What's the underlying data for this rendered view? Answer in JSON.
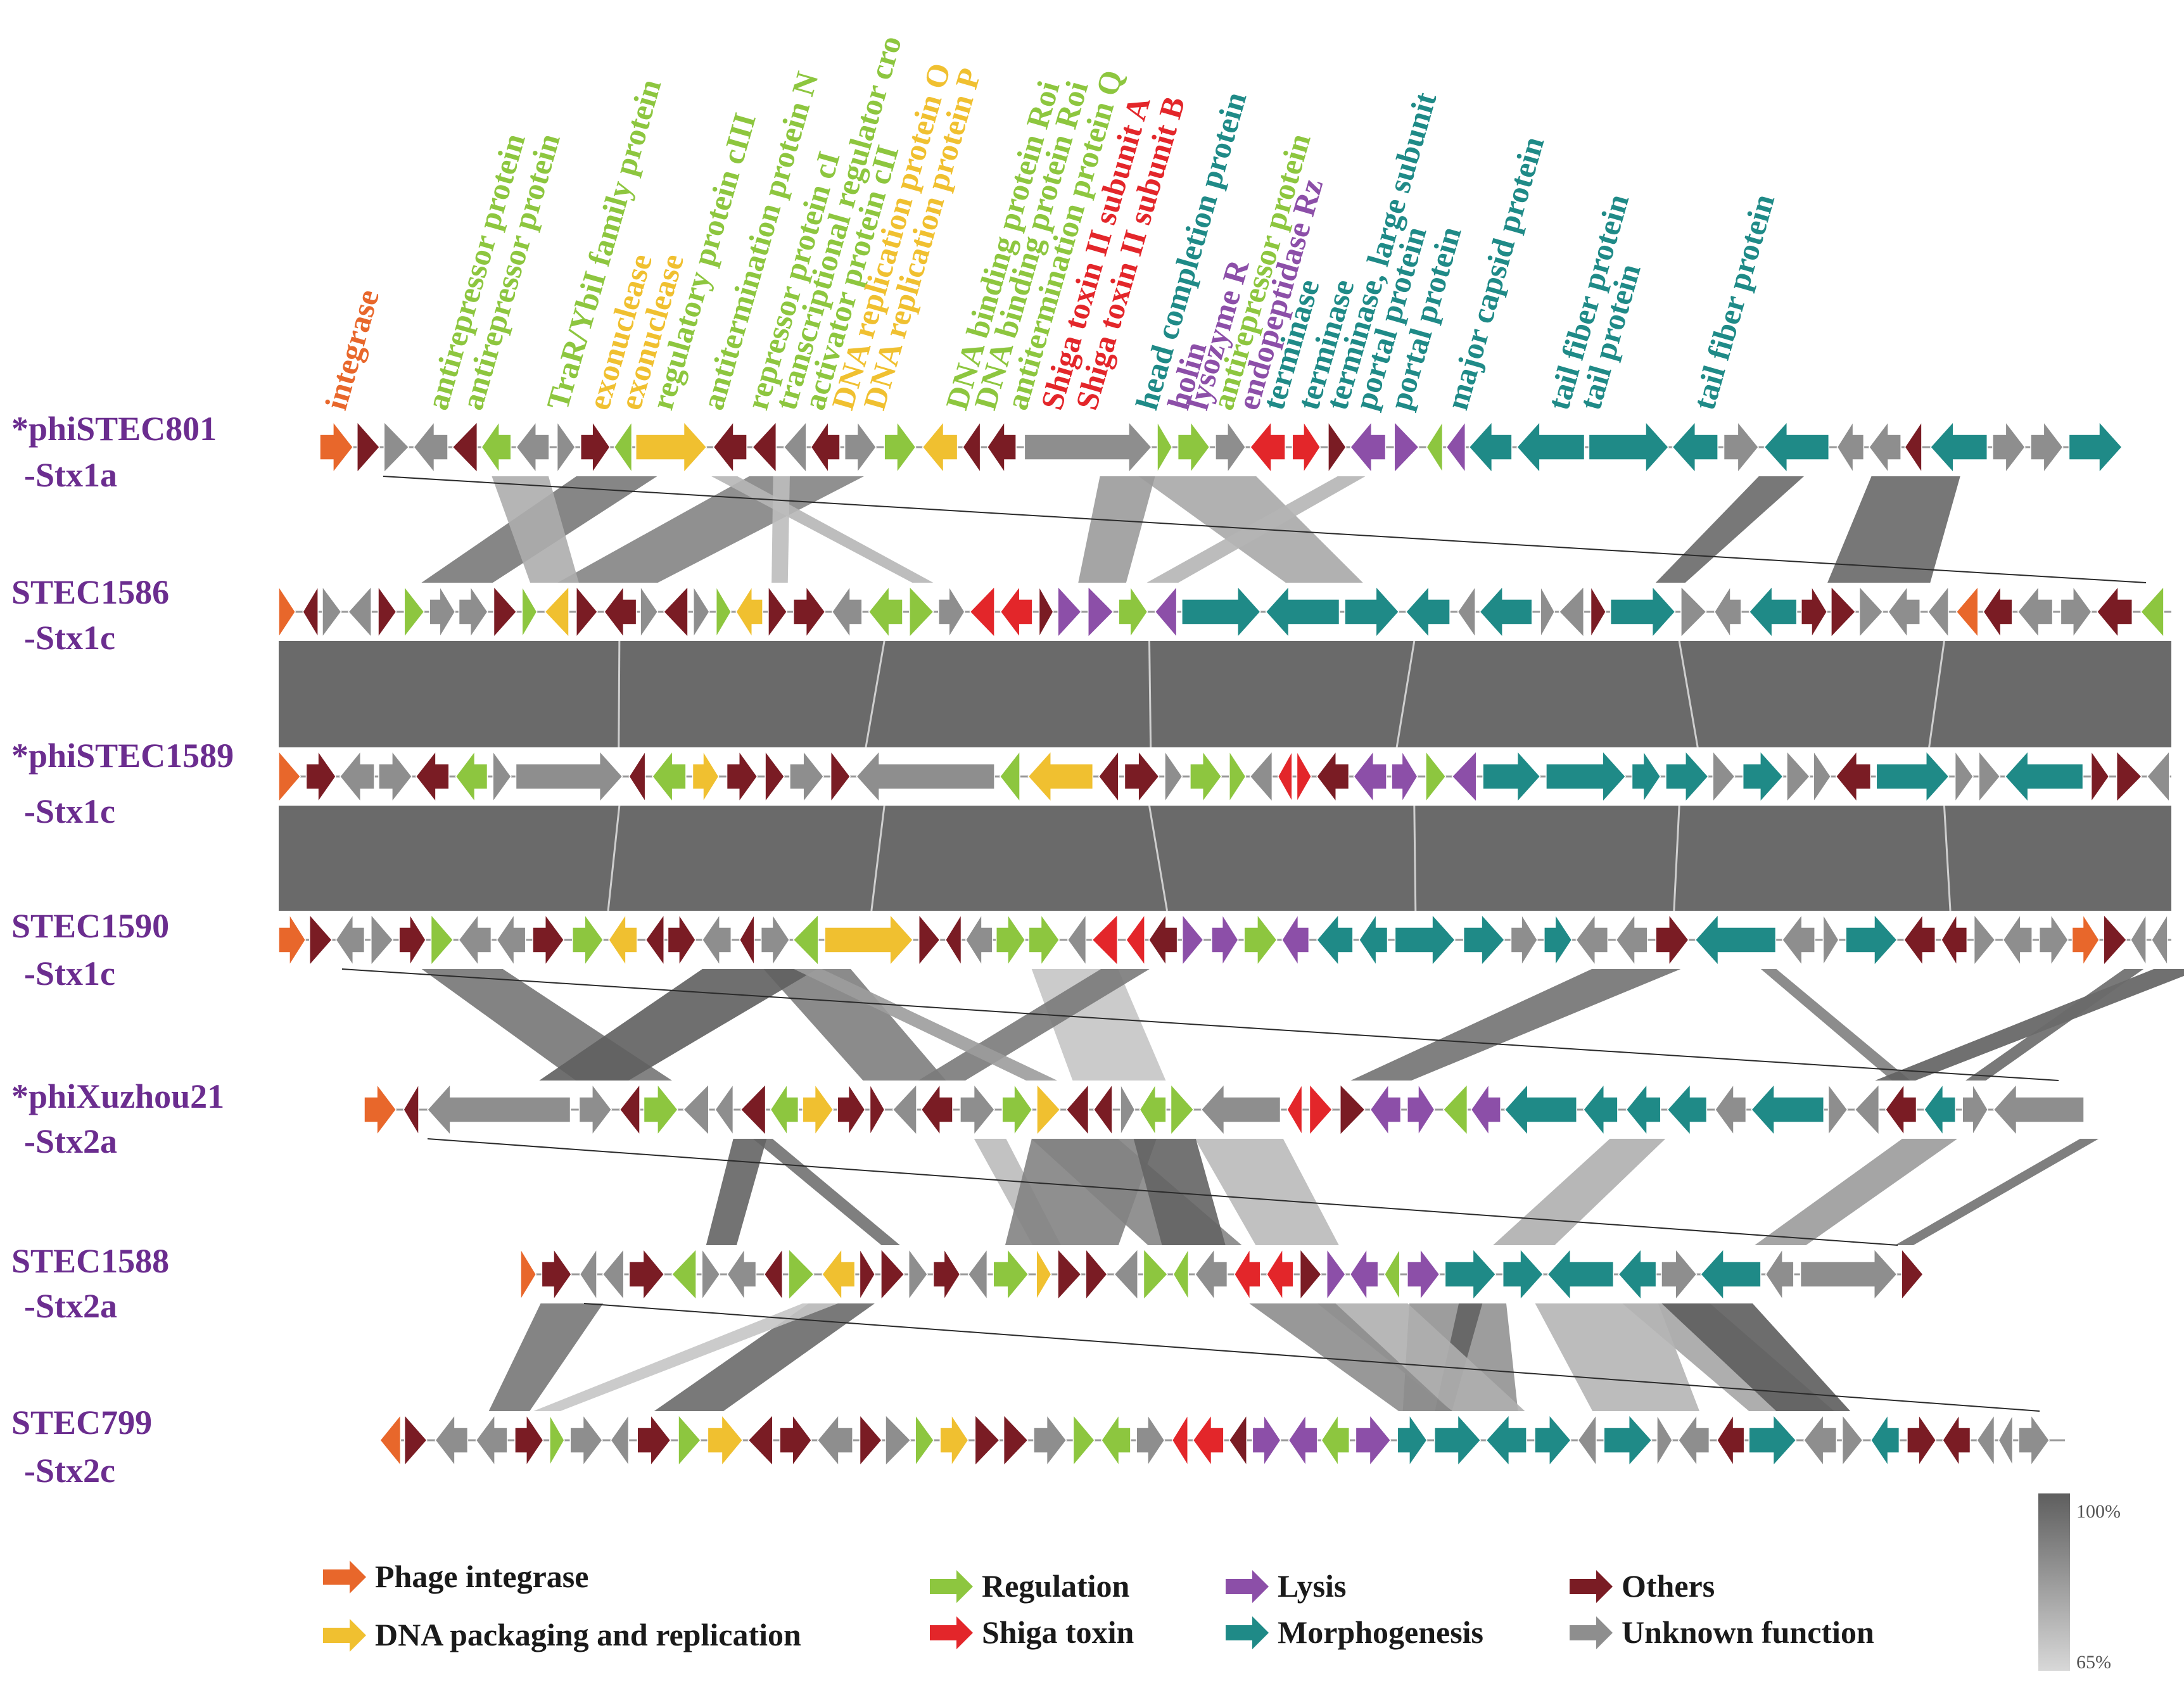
{
  "colors": {
    "integrase": "#e8672b",
    "packaging": "#f0c030",
    "regulation": "#8dc63f",
    "shiga": "#e3262a",
    "lysis": "#8c4fa8",
    "morphogenesis": "#1f8a87",
    "others": "#7a1c24",
    "unknown": "#8e8e8e",
    "strain_label": "#6b2d8f"
  },
  "gene_labels": [
    {
      "text": "integrase",
      "cat": "integrase"
    },
    {
      "text": "antirepressor protein",
      "cat": "regulation"
    },
    {
      "text": "antirepressor protein",
      "cat": "regulation"
    },
    {
      "text": "TraR/YbiI family protein",
      "cat": "regulation"
    },
    {
      "text": "exonuclease",
      "cat": "packaging"
    },
    {
      "text": "exonuclease",
      "cat": "packaging"
    },
    {
      "text": "regulatory protein cIII",
      "cat": "regulation"
    },
    {
      "text": "antitermination protein N",
      "cat": "regulation"
    },
    {
      "text": "repressor protein cI",
      "cat": "regulation"
    },
    {
      "text": "transcriptional regulator cro",
      "cat": "regulation"
    },
    {
      "text": "activator protein cII",
      "cat": "regulation"
    },
    {
      "parts": [
        {
          "text": "DNA ",
          "cat": "packaging"
        },
        {
          "text": "replication protein O",
          "cat": "packaging"
        }
      ]
    },
    {
      "text": "DNA replication protein P",
      "cat": "packaging"
    },
    {
      "text": "DNA binding protein Roi",
      "cat": "regulation"
    },
    {
      "text": "DNA binding protein Roi",
      "cat": "regulation"
    },
    {
      "text": "antitermination protein Q",
      "cat": "regulation"
    },
    {
      "text": "Shiga toxin II subunit A",
      "cat": "shiga"
    },
    {
      "text": "Shiga toxin II subunit B",
      "cat": "shiga"
    },
    {
      "text": "head completion protein",
      "cat": "morphogenesis"
    },
    {
      "text": "holin",
      "cat": "lysis"
    },
    {
      "text": "lysozyme R",
      "cat": "lysis"
    },
    {
      "text": "antirepressor protein",
      "cat": "regulation"
    },
    {
      "text": "endopeptidase Rz",
      "cat": "lysis"
    },
    {
      "text": "terminase",
      "cat": "morphogenesis"
    },
    {
      "text": "terminase",
      "cat": "morphogenesis"
    },
    {
      "text": "terminase, large subunit",
      "cat": "morphogenesis"
    },
    {
      "text": "portal protein",
      "cat": "morphogenesis"
    },
    {
      "text": "portal protein",
      "cat": "morphogenesis"
    },
    {
      "text": "major capsid protein",
      "cat": "morphogenesis"
    },
    {
      "text": "tail fiber protein",
      "cat": "morphogenesis"
    },
    {
      "text": "tail protein",
      "cat": "morphogenesis"
    },
    {
      "text": "tail fiber protein",
      "cat": "morphogenesis"
    }
  ],
  "genomes": [
    {
      "name": "*phiSTEC801",
      "subtype": "-Stx1a",
      "start": 0.0,
      "end": 1.0
    },
    {
      "name": "STEC1586",
      "subtype": "-Stx1c",
      "start": 0.0,
      "end": 1.0
    },
    {
      "name": "*phiSTEC1589",
      "subtype": "-Stx1c",
      "start": 0.0,
      "end": 1.0
    },
    {
      "name": "STEC1590",
      "subtype": "-Stx1c",
      "start": 0.0,
      "end": 1.0
    },
    {
      "name": "*phiXuzhou21",
      "subtype": "-Stx2a",
      "start": 0.0,
      "end": 1.0
    },
    {
      "name": "STEC1588",
      "subtype": "-Stx2a",
      "start": 0.0,
      "end": 1.0
    },
    {
      "name": "STEC799",
      "subtype": "-Stx2c",
      "start": 0.0,
      "end": 1.0
    }
  ],
  "legend": [
    {
      "label": "Phage integrase",
      "cat": "integrase"
    },
    {
      "label": "DNA packaging and replication",
      "cat": "packaging"
    },
    {
      "label": "Regulation",
      "cat": "regulation"
    },
    {
      "label": "Shiga toxin",
      "cat": "shiga"
    },
    {
      "label": "Lysis",
      "cat": "lysis"
    },
    {
      "label": "Morphogenesis",
      "cat": "morphogenesis"
    },
    {
      "label": "Others",
      "cat": "others"
    },
    {
      "label": "Unknown function",
      "cat": "unknown"
    }
  ],
  "identity_scale": {
    "max": "100%",
    "min": "65%"
  }
}
